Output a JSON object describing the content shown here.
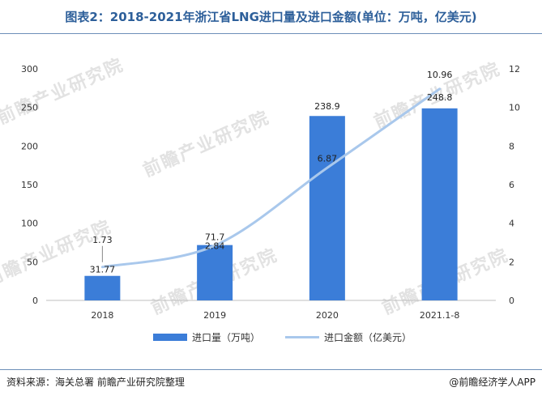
{
  "title": "图表2：2018-2021年浙江省LNG进口量及进口金额(单位：万吨，亿美元)",
  "watermark": "前瞻产业研究院",
  "source": "资料来源：海关总署 前瞻产业研究院整理",
  "brand": "@前瞻经济学人APP",
  "colors": {
    "bar": "#3b7dd8",
    "line": "#a9c8ec",
    "title": "#2d5f9a"
  },
  "chart_data": {
    "type": "bar",
    "categories": [
      "2018",
      "2019",
      "2020",
      "2021.1-8"
    ],
    "series": [
      {
        "name": "进口量（万吨）",
        "type": "bar",
        "axis": "left",
        "values": [
          31.77,
          71.7,
          238.9,
          248.8
        ]
      },
      {
        "name": "进口金额（亿美元）",
        "type": "line",
        "axis": "right",
        "values": [
          1.73,
          2.84,
          6.87,
          10.96
        ]
      }
    ],
    "y_left": {
      "min": 0,
      "max": 300,
      "ticks": [
        0,
        50,
        100,
        150,
        200,
        250,
        300
      ]
    },
    "y_right": {
      "min": 0,
      "max": 12,
      "ticks": [
        0,
        2,
        4,
        6,
        8,
        10,
        12
      ]
    },
    "bar_labels": [
      "31.77",
      "71.7",
      "238.9",
      "248.8"
    ],
    "line_labels": [
      "1.73",
      "2.84",
      "6.87",
      "10.96"
    ],
    "grid": false,
    "legend_position": "bottom"
  }
}
